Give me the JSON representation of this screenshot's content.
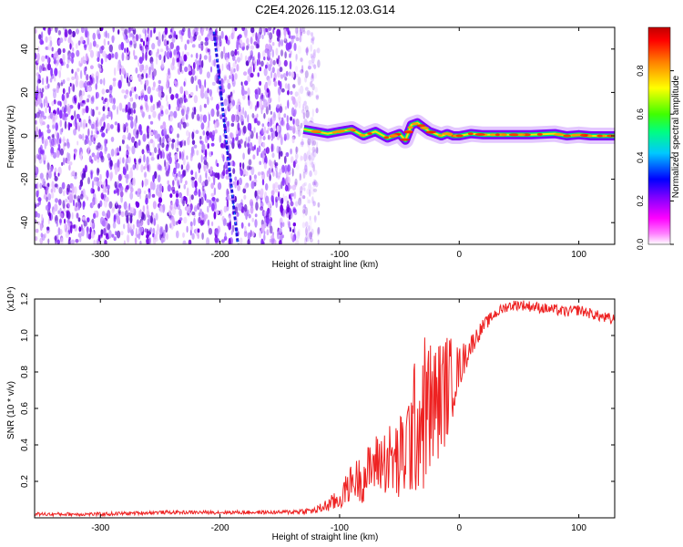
{
  "title": "C2E4.2026.115.12.03.G14",
  "chart_data": [
    {
      "type": "heatmap",
      "xlabel": "Height of straight line (km)",
      "ylabel": "Frequency (Hz)",
      "xlim": [
        -355,
        130
      ],
      "ylim": [
        -50,
        50
      ],
      "x_ticks": [
        -300,
        -200,
        -100,
        0,
        100
      ],
      "y_ticks": [
        -40,
        -20,
        0,
        20,
        40
      ],
      "colorbar": {
        "label": "Normalized spectral amplitude",
        "range": [
          0.0,
          1.0
        ],
        "ticks": [
          0.0,
          0.2,
          0.4,
          0.6,
          0.8
        ],
        "tick_labels": [
          "0.0",
          "0.2",
          "0.4",
          "0.6",
          "0.8"
        ],
        "colors": [
          "#ffffff",
          "#ff00ff",
          "#7b00ff",
          "#0000ff",
          "#00d0ff",
          "#00ff80",
          "#40ff00",
          "#ffff00",
          "#ff8000",
          "#ff0000",
          "#c00000"
        ]
      },
      "noise_region_x": [
        -355,
        -125
      ],
      "streak": {
        "x": [
          -205,
          -185
        ],
        "y": [
          48,
          -50
        ]
      },
      "signal_trace": {
        "x": [
          -130,
          -120,
          -110,
          -100,
          -90,
          -80,
          -70,
          -60,
          -50,
          -45,
          -40,
          -35,
          -30,
          -25,
          -20,
          -15,
          -10,
          -5,
          0,
          10,
          20,
          40,
          60,
          80,
          90,
          100,
          110,
          120,
          130
        ],
        "y": [
          3,
          2,
          1,
          2,
          3,
          0,
          2,
          -1,
          1,
          -2,
          5,
          6,
          4,
          2,
          1,
          0,
          1,
          0,
          0,
          1,
          0.5,
          0.5,
          0.5,
          1,
          0,
          0.5,
          0,
          0,
          0
        ]
      }
    },
    {
      "type": "line",
      "xlabel": "Height of straight line (km)",
      "ylabel": "SNR (10 * v/v)",
      "y_multiplier": "(x10⁴)",
      "xlim": [
        -355,
        130
      ],
      "ylim": [
        0,
        1.2
      ],
      "x_ticks": [
        -300,
        -200,
        -100,
        0,
        100
      ],
      "y_ticks": [
        0.2,
        0.4,
        0.6,
        0.8,
        1.0,
        1.2
      ],
      "y_tick_labels": [
        "0.2",
        "0.4",
        "0.6",
        "0.8",
        "1.0",
        "1.2"
      ],
      "series": [
        {
          "color": "#ee2222",
          "x": [
            -355,
            -300,
            -250,
            -200,
            -150,
            -120,
            -100,
            -90,
            -80,
            -70,
            -60,
            -50,
            -40,
            -30,
            -20,
            -10,
            0,
            10,
            20,
            30,
            40,
            50,
            60,
            70,
            80,
            90,
            100,
            110,
            120,
            130
          ],
          "y": [
            0.02,
            0.02,
            0.03,
            0.03,
            0.03,
            0.04,
            0.1,
            0.2,
            0.22,
            0.3,
            0.32,
            0.3,
            0.45,
            0.58,
            0.62,
            0.72,
            0.82,
            0.95,
            1.05,
            1.12,
            1.16,
            1.17,
            1.16,
            1.15,
            1.14,
            1.13,
            1.14,
            1.12,
            1.1,
            1.08
          ],
          "spread": [
            0.01,
            0.01,
            0.01,
            0.01,
            0.01,
            0.02,
            0.06,
            0.1,
            0.14,
            0.16,
            0.2,
            0.25,
            0.35,
            0.45,
            0.35,
            0.3,
            0.12,
            0.06,
            0.04,
            0.03,
            0.03,
            0.03,
            0.03,
            0.03,
            0.03,
            0.03,
            0.03,
            0.03,
            0.03,
            0.04
          ]
        }
      ]
    }
  ]
}
